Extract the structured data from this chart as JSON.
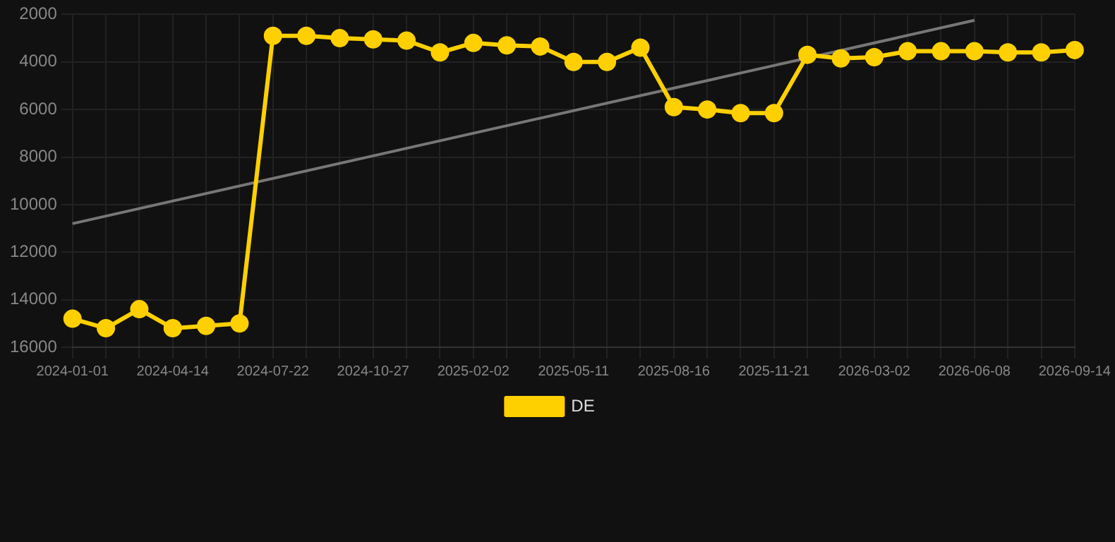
{
  "chart_data": {
    "type": "line",
    "categories": [
      "2024-01-01",
      null,
      null,
      "2024-04-14",
      null,
      null,
      "2024-07-22",
      null,
      null,
      "2024-10-27",
      null,
      null,
      "2025-02-02",
      null,
      null,
      "2025-05-11",
      null,
      null,
      "2025-08-16",
      null,
      null,
      "2025-11-21",
      null,
      null,
      "2026-03-02",
      null,
      null,
      "2026-06-08",
      null,
      null,
      "2026-09-14"
    ],
    "series": [
      {
        "name": "DE",
        "color": "#ffd000",
        "marker": "circle",
        "values": [
          14800,
          15200,
          14400,
          15200,
          15100,
          15000,
          2900,
          2900,
          3000,
          3050,
          3100,
          3600,
          3200,
          3300,
          3350,
          4000,
          4000,
          3400,
          5900,
          6000,
          6150,
          6150,
          3700,
          3850,
          3800,
          3550,
          3550,
          3550,
          3600,
          3600,
          3500
        ]
      },
      {
        "type": "line",
        "color": "#777777",
        "marker": "none",
        "values": [
          10800,
          null,
          null,
          null,
          null,
          null,
          null,
          null,
          null,
          null,
          null,
          null,
          null,
          null,
          null,
          null,
          null,
          null,
          null,
          null,
          null,
          null,
          null,
          null,
          null,
          null,
          null,
          2250,
          null,
          null,
          null
        ]
      }
    ],
    "ylim": [
      16000,
      2000
    ],
    "yticks": [
      2000,
      4000,
      6000,
      8000,
      10000,
      12000,
      14000,
      16000
    ],
    "grid": true,
    "legend": "bottom"
  }
}
